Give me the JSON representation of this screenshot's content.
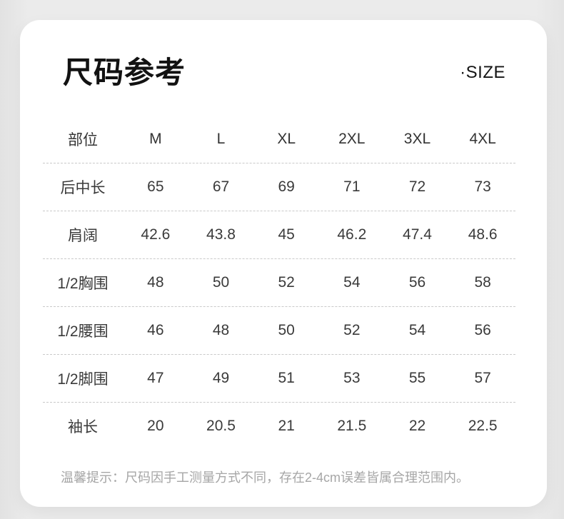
{
  "header": {
    "title": "尺码参考",
    "subtitle": "·SIZE"
  },
  "table": {
    "columns": [
      "部位",
      "M",
      "L",
      "XL",
      "2XL",
      "3XL",
      "4XL"
    ],
    "rows": [
      {
        "label": "后中长",
        "values": [
          "65",
          "67",
          "69",
          "71",
          "72",
          "73"
        ]
      },
      {
        "label": "肩阔",
        "values": [
          "42.6",
          "43.8",
          "45",
          "46.2",
          "47.4",
          "48.6"
        ]
      },
      {
        "label": "1/2胸围",
        "values": [
          "48",
          "50",
          "52",
          "54",
          "56",
          "58"
        ]
      },
      {
        "label": "1/2腰围",
        "values": [
          "46",
          "48",
          "50",
          "52",
          "54",
          "56"
        ]
      },
      {
        "label": "1/2脚围",
        "values": [
          "47",
          "49",
          "51",
          "53",
          "55",
          "57"
        ]
      },
      {
        "label": "袖长",
        "values": [
          "20",
          "20.5",
          "21",
          "21.5",
          "22",
          "22.5"
        ]
      }
    ]
  },
  "footer": {
    "note": "温馨提示：尺码因手工测量方式不同，存在2-4cm误差皆属合理范围内。"
  },
  "colors": {
    "background": "#ebebeb",
    "card": "#ffffff",
    "title_text": "#121212",
    "table_text": "#3a3a3a",
    "divider": "#c9c9c9",
    "note_text": "#a6a6a6"
  },
  "chart_data": {
    "type": "table",
    "title": "尺码参考",
    "subtitle": "·SIZE",
    "columns": [
      "部位",
      "M",
      "L",
      "XL",
      "2XL",
      "3XL",
      "4XL"
    ],
    "rows": [
      [
        "后中长",
        65,
        67,
        69,
        71,
        72,
        73
      ],
      [
        "肩阔",
        42.6,
        43.8,
        45,
        46.2,
        47.4,
        48.6
      ],
      [
        "1/2胸围",
        48,
        50,
        52,
        54,
        56,
        58
      ],
      [
        "1/2腰围",
        46,
        48,
        50,
        52,
        54,
        56
      ],
      [
        "1/2脚围",
        47,
        49,
        51,
        53,
        55,
        57
      ],
      [
        "袖长",
        20,
        20.5,
        21,
        21.5,
        22,
        22.5
      ]
    ],
    "footnote": "温馨提示：尺码因手工测量方式不同，存在2-4cm误差皆属合理范围内。",
    "layout": "white rounded card on gray background, dashed horizontal separators between rows, no separator after last row"
  }
}
